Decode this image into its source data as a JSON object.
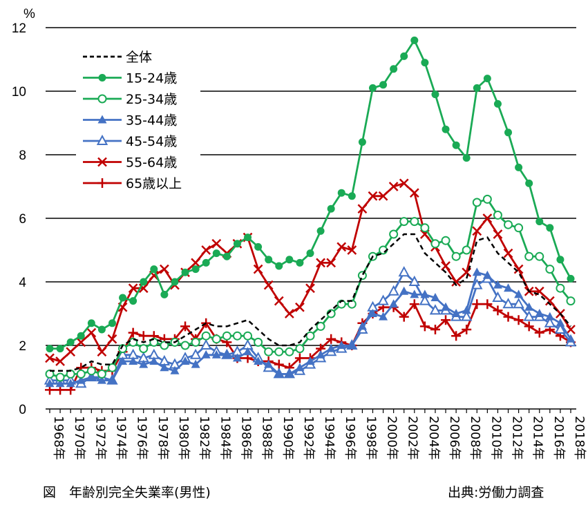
{
  "chart_data": {
    "type": "line",
    "title": "図　年齢別完全失業率(男性)",
    "source": "出典:労働力調査",
    "ylabel": "%",
    "ylim": [
      0,
      12
    ],
    "yticks": [
      0,
      2,
      4,
      6,
      8,
      10,
      12
    ],
    "grid": true,
    "legend_position": "top-left",
    "x": [
      1968,
      1969,
      1970,
      1971,
      1972,
      1973,
      1974,
      1975,
      1976,
      1977,
      1978,
      1979,
      1980,
      1981,
      1982,
      1983,
      1984,
      1985,
      1986,
      1987,
      1988,
      1989,
      1990,
      1991,
      1992,
      1993,
      1994,
      1995,
      1996,
      1997,
      1998,
      1999,
      2000,
      2001,
      2002,
      2003,
      2004,
      2005,
      2006,
      2007,
      2008,
      2009,
      2010,
      2011,
      2012,
      2013,
      2014,
      2015,
      2016,
      2017,
      2018
    ],
    "xtick_labels": [
      "1968年",
      "1970年",
      "1972年",
      "1974年",
      "1976年",
      "1978年",
      "1980年",
      "1982年",
      "1984年",
      "1986年",
      "1988年",
      "1990年",
      "1992年",
      "1994年",
      "1996年",
      "1998年",
      "2000年",
      "2002年",
      "2004年",
      "2006年",
      "2008年",
      "2010年",
      "2012年",
      "2014年",
      "2016年",
      "2018年"
    ],
    "series": [
      {
        "name": "全体",
        "color": "#000000",
        "marker": "none",
        "dashed": true,
        "values": [
          1.2,
          1.2,
          1.2,
          1.3,
          1.5,
          1.4,
          1.4,
          2.0,
          2.2,
          2.1,
          2.2,
          2.1,
          2.1,
          2.3,
          2.5,
          2.7,
          2.6,
          2.6,
          2.7,
          2.8,
          2.5,
          2.2,
          2.0,
          2.0,
          2.1,
          2.5,
          2.8,
          3.1,
          3.4,
          3.4,
          4.2,
          4.8,
          4.9,
          5.2,
          5.5,
          5.5,
          4.9,
          4.6,
          4.3,
          3.9,
          4.1,
          5.3,
          5.4,
          4.9,
          4.6,
          4.3,
          3.7,
          3.6,
          3.3,
          3.0,
          2.6
        ]
      },
      {
        "name": "15-24歳",
        "color": "#1aaa55",
        "marker": "filled-circle",
        "values": [
          1.9,
          1.9,
          2.1,
          2.3,
          2.7,
          2.5,
          2.7,
          3.5,
          3.4,
          4.0,
          4.4,
          3.6,
          4.0,
          4.3,
          4.4,
          4.6,
          4.9,
          4.8,
          5.2,
          5.4,
          5.1,
          4.7,
          4.5,
          4.7,
          4.6,
          4.9,
          5.6,
          6.3,
          6.8,
          6.7,
          8.4,
          10.1,
          10.2,
          10.7,
          11.1,
          11.6,
          10.9,
          9.9,
          8.8,
          8.3,
          7.9,
          10.1,
          10.4,
          9.6,
          8.7,
          7.6,
          7.1,
          5.9,
          5.7,
          4.7,
          4.1
        ]
      },
      {
        "name": "25-34歳",
        "color": "#1aaa55",
        "marker": "open-circle",
        "values": [
          1.1,
          1.0,
          1.1,
          1.1,
          1.2,
          1.1,
          1.3,
          1.9,
          2.1,
          1.9,
          2.1,
          2.0,
          2.1,
          2.0,
          2.1,
          2.3,
          2.2,
          2.3,
          2.3,
          2.3,
          2.1,
          1.8,
          1.8,
          1.8,
          1.9,
          2.3,
          2.6,
          3.0,
          3.3,
          3.3,
          4.2,
          4.8,
          5.0,
          5.5,
          5.9,
          5.9,
          5.7,
          5.2,
          5.3,
          4.8,
          5.0,
          6.5,
          6.6,
          6.1,
          5.8,
          5.7,
          4.8,
          4.8,
          4.4,
          3.8,
          3.4
        ]
      },
      {
        "name": "35-44歳",
        "color": "#4472c4",
        "marker": "filled-triangle",
        "values": [
          0.8,
          0.8,
          0.8,
          0.9,
          1.0,
          0.9,
          0.9,
          1.5,
          1.5,
          1.4,
          1.5,
          1.3,
          1.2,
          1.5,
          1.4,
          1.7,
          1.7,
          1.7,
          1.6,
          1.8,
          1.5,
          1.4,
          1.1,
          1.1,
          1.3,
          1.5,
          1.7,
          1.9,
          2.0,
          2.0,
          2.6,
          3.0,
          2.9,
          3.3,
          3.7,
          3.6,
          3.6,
          3.5,
          3.2,
          3.0,
          3.1,
          4.3,
          4.2,
          3.9,
          3.8,
          3.6,
          3.2,
          3.0,
          2.9,
          2.7,
          2.2
        ]
      },
      {
        "name": "45-54歳",
        "color": "#4472c4",
        "marker": "open-triangle",
        "values": [
          0.9,
          0.9,
          0.9,
          0.8,
          1.0,
          1.0,
          0.9,
          1.7,
          1.7,
          1.6,
          1.7,
          1.5,
          1.4,
          1.6,
          1.7,
          2.0,
          1.8,
          1.7,
          1.8,
          2.0,
          1.6,
          1.3,
          1.1,
          1.1,
          1.2,
          1.4,
          1.6,
          1.8,
          1.9,
          2.0,
          2.5,
          3.2,
          3.4,
          3.7,
          4.3,
          4.0,
          3.4,
          3.1,
          3.1,
          2.9,
          2.9,
          3.9,
          4.1,
          3.5,
          3.3,
          3.3,
          2.9,
          2.9,
          2.7,
          2.5,
          2.1
        ]
      },
      {
        "name": "55-64歳",
        "color": "#c00000",
        "marker": "x",
        "values": [
          1.6,
          1.5,
          1.8,
          2.1,
          2.4,
          1.8,
          2.2,
          3.2,
          3.8,
          3.8,
          4.2,
          4.4,
          3.9,
          4.3,
          4.6,
          5.0,
          5.2,
          4.9,
          5.2,
          5.4,
          4.4,
          3.9,
          3.4,
          3.0,
          3.2,
          3.8,
          4.6,
          4.6,
          5.1,
          5.0,
          6.3,
          6.7,
          6.7,
          7.0,
          7.1,
          6.8,
          5.5,
          5.1,
          4.5,
          4.0,
          4.3,
          5.6,
          6.0,
          5.5,
          4.9,
          4.4,
          3.7,
          3.7,
          3.4,
          3.0,
          2.5
        ]
      },
      {
        "name": "65歳以上",
        "color": "#c00000",
        "marker": "plus",
        "values": [
          0.6,
          0.6,
          0.6,
          1.3,
          1.3,
          1.2,
          1.2,
          1.8,
          2.4,
          2.3,
          2.3,
          2.2,
          2.2,
          2.6,
          2.2,
          2.7,
          2.2,
          2.1,
          1.6,
          1.6,
          1.5,
          1.5,
          1.4,
          1.3,
          1.6,
          1.6,
          1.9,
          2.2,
          2.1,
          2.0,
          2.7,
          3.0,
          3.2,
          3.2,
          2.9,
          3.3,
          2.6,
          2.5,
          2.8,
          2.3,
          2.5,
          3.3,
          3.3,
          3.1,
          2.9,
          2.8,
          2.6,
          2.4,
          2.5,
          2.3,
          2.1
        ]
      }
    ]
  }
}
